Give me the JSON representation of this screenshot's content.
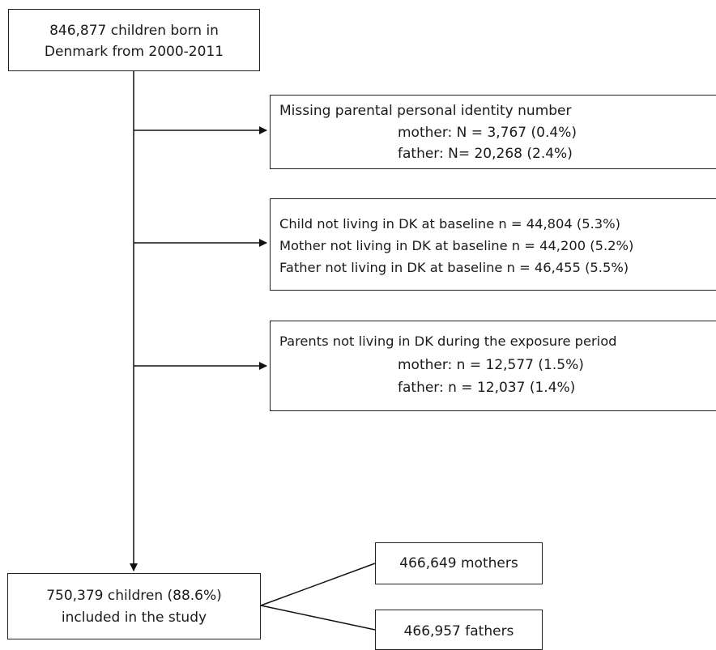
{
  "start_box": {
    "lines": [
      "846,877 children born in",
      "Denmark from 2000-2011"
    ]
  },
  "exclusion_1": {
    "lines": [
      "Missing parental personal identity number",
      "mother:  N = 3,767 (0.4%)",
      "father: N= 20,268 (2.4%)"
    ]
  },
  "exclusion_2": {
    "lines": [
      "Child not  living in DK at baseline n = 44,804 (5.3%)",
      "Mother  not living in DK at baseline n = 44,200 (5.2%)",
      "Father not living in DK at baseline n = 46,455 (5.5%)"
    ]
  },
  "exclusion_3": {
    "lines": [
      "Parents not  living in DK during  the  exposure period",
      "mother:  n = 12,577 (1.5%)",
      "father: n = 12,037 (1.4%)"
    ]
  },
  "final_box": {
    "lines": [
      "750,379 children (88.6%)",
      "included in the study"
    ]
  },
  "mothers_box": {
    "label": "466,649 mothers"
  },
  "fathers_box": {
    "label": "466,957 fathers"
  }
}
